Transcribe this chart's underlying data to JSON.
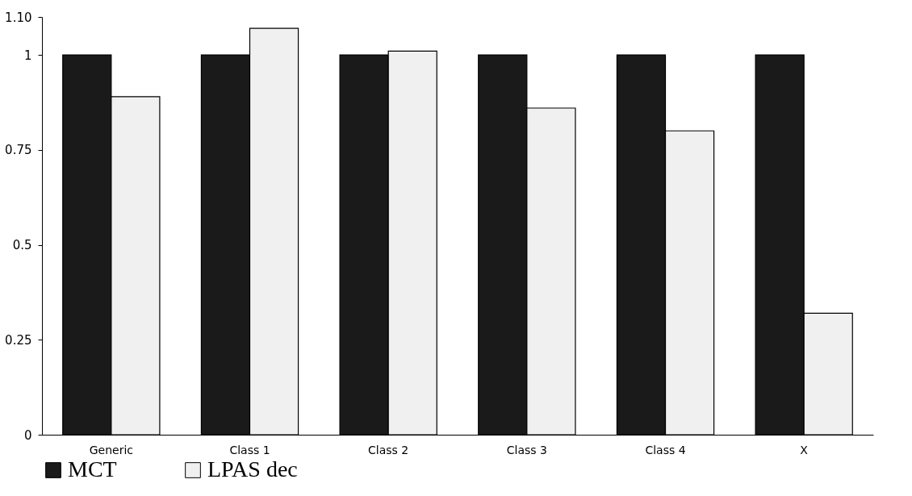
{
  "chart_data": {
    "type": "bar",
    "categories": [
      "Generic",
      "Class 1",
      "Class 2",
      "Class 3",
      "Class 4",
      "X"
    ],
    "series": [
      {
        "name": "MCT",
        "color": "#1a1a1a",
        "values": [
          1,
          1,
          1,
          1,
          1,
          1
        ]
      },
      {
        "name": "LPAS  dec",
        "color": "#f0f0f0",
        "values": [
          0.89,
          1.07,
          1.01,
          0.86,
          0.8,
          0.32
        ]
      }
    ],
    "ylim": [
      0,
      1.1
    ],
    "yticks": [
      0,
      0.25,
      0.5,
      0.75,
      1,
      {
        "value": 1.1,
        "label": "1.10"
      }
    ],
    "grid": false,
    "legend": "bottom"
  }
}
